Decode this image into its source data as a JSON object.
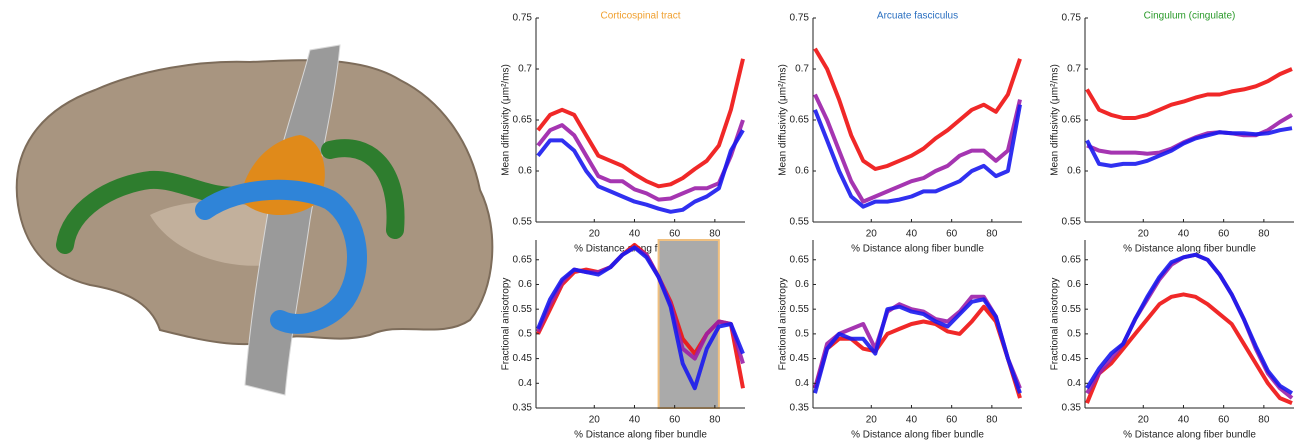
{
  "chart_data": [
    {
      "type": "line",
      "title": "Corticospinal tract",
      "title_color": "#f0a030",
      "xlabel": "% Distance along fiber bundle",
      "ylabel": "Mean diffusivity (μm²/ms)",
      "x": [
        -8,
        -2,
        4,
        10,
        16,
        22,
        28,
        34,
        40,
        46,
        52,
        58,
        64,
        70,
        76,
        82,
        88,
        94
      ],
      "xlim": [
        -9,
        95
      ],
      "xticks": [
        20,
        40,
        60,
        80
      ],
      "ylim": [
        0.55,
        0.75
      ],
      "yticks": [
        0.55,
        0.6,
        0.65,
        0.7,
        0.75
      ],
      "series": [
        {
          "color": "#ee1111",
          "values": [
            0.64,
            0.655,
            0.66,
            0.655,
            0.635,
            0.615,
            0.61,
            0.605,
            0.597,
            0.59,
            0.585,
            0.587,
            0.593,
            0.602,
            0.61,
            0.625,
            0.66,
            0.71
          ]
        },
        {
          "color": "#9b1fa8",
          "values": [
            0.625,
            0.64,
            0.645,
            0.635,
            0.615,
            0.595,
            0.59,
            0.59,
            0.582,
            0.578,
            0.572,
            0.573,
            0.578,
            0.583,
            0.583,
            0.588,
            0.615,
            0.65
          ]
        },
        {
          "color": "#1a1aee",
          "values": [
            0.615,
            0.63,
            0.63,
            0.62,
            0.6,
            0.585,
            0.58,
            0.575,
            0.57,
            0.567,
            0.563,
            0.56,
            0.562,
            0.57,
            0.575,
            0.583,
            0.62,
            0.64
          ]
        }
      ]
    },
    {
      "type": "line",
      "title": "Arcuate fasciculus",
      "title_color": "#2a6fc0",
      "xlabel": "% Distance along fiber bundle",
      "ylabel": "Mean diffusivity (μm²/ms)",
      "x": [
        -8,
        -2,
        4,
        10,
        16,
        22,
        28,
        34,
        40,
        46,
        52,
        58,
        64,
        70,
        76,
        82,
        88,
        94
      ],
      "xlim": [
        -9,
        95
      ],
      "xticks": [
        20,
        40,
        60,
        80
      ],
      "ylim": [
        0.55,
        0.75
      ],
      "yticks": [
        0.55,
        0.6,
        0.65,
        0.7,
        0.75
      ],
      "series": [
        {
          "color": "#ee1111",
          "values": [
            0.72,
            0.7,
            0.67,
            0.635,
            0.61,
            0.602,
            0.605,
            0.61,
            0.615,
            0.622,
            0.632,
            0.64,
            0.65,
            0.66,
            0.665,
            0.658,
            0.675,
            0.71
          ]
        },
        {
          "color": "#9b1fa8",
          "values": [
            0.675,
            0.65,
            0.62,
            0.59,
            0.57,
            0.575,
            0.58,
            0.585,
            0.59,
            0.593,
            0.6,
            0.605,
            0.615,
            0.62,
            0.62,
            0.61,
            0.62,
            0.67
          ]
        },
        {
          "color": "#1a1aee",
          "values": [
            0.66,
            0.63,
            0.6,
            0.575,
            0.565,
            0.57,
            0.57,
            0.572,
            0.575,
            0.58,
            0.58,
            0.585,
            0.59,
            0.6,
            0.605,
            0.595,
            0.6,
            0.665
          ]
        }
      ]
    },
    {
      "type": "line",
      "title": "Cingulum (cingulate)",
      "title_color": "#2a9a2a",
      "xlabel": "% Distance along fiber bundle",
      "ylabel": "Mean diffusivity (μm²/ms)",
      "x": [
        -8,
        -2,
        4,
        10,
        16,
        22,
        28,
        34,
        40,
        46,
        52,
        58,
        64,
        70,
        76,
        82,
        88,
        94
      ],
      "xlim": [
        -9,
        95
      ],
      "xticks": [
        20,
        40,
        60,
        80
      ],
      "ylim": [
        0.55,
        0.75
      ],
      "yticks": [
        0.55,
        0.6,
        0.65,
        0.7,
        0.75
      ],
      "series": [
        {
          "color": "#ee1111",
          "values": [
            0.68,
            0.66,
            0.655,
            0.652,
            0.652,
            0.655,
            0.66,
            0.665,
            0.668,
            0.672,
            0.675,
            0.675,
            0.678,
            0.68,
            0.683,
            0.688,
            0.695,
            0.7
          ]
        },
        {
          "color": "#9b1fa8",
          "values": [
            0.625,
            0.62,
            0.618,
            0.618,
            0.618,
            0.617,
            0.618,
            0.622,
            0.628,
            0.633,
            0.637,
            0.638,
            0.637,
            0.635,
            0.635,
            0.64,
            0.648,
            0.655
          ]
        },
        {
          "color": "#1a1aee",
          "values": [
            0.63,
            0.607,
            0.605,
            0.607,
            0.607,
            0.61,
            0.615,
            0.62,
            0.627,
            0.632,
            0.635,
            0.638,
            0.637,
            0.637,
            0.636,
            0.637,
            0.64,
            0.642
          ]
        }
      ]
    },
    {
      "type": "line",
      "xlabel": "% Distance along fiber bundle",
      "ylabel": "Fractional anisotropy",
      "x": [
        -8,
        -2,
        4,
        10,
        16,
        22,
        28,
        34,
        40,
        46,
        52,
        58,
        64,
        70,
        76,
        82,
        88,
        94
      ],
      "xlim": [
        -9,
        95
      ],
      "xticks": [
        20,
        40,
        60,
        80
      ],
      "ylim": [
        0.35,
        0.69
      ],
      "yticks": [
        0.35,
        0.4,
        0.45,
        0.5,
        0.55,
        0.6,
        0.65
      ],
      "highlight": {
        "xlim": [
          52,
          82
        ],
        "color": "#aaaaaa",
        "edgecolor": "#f0c080"
      },
      "series": [
        {
          "color": "#ee1111",
          "values": [
            0.5,
            0.55,
            0.6,
            0.625,
            0.63,
            0.625,
            0.635,
            0.66,
            0.68,
            0.66,
            0.615,
            0.565,
            0.49,
            0.46,
            0.5,
            0.525,
            0.52,
            0.39
          ]
        },
        {
          "color": "#9b1fa8",
          "values": [
            0.505,
            0.56,
            0.605,
            0.63,
            0.625,
            0.625,
            0.635,
            0.66,
            0.675,
            0.66,
            0.615,
            0.56,
            0.47,
            0.45,
            0.5,
            0.525,
            0.52,
            0.44
          ]
        },
        {
          "color": "#1a1aee",
          "values": [
            0.51,
            0.57,
            0.61,
            0.63,
            0.625,
            0.62,
            0.635,
            0.66,
            0.675,
            0.655,
            0.615,
            0.555,
            0.44,
            0.39,
            0.47,
            0.515,
            0.52,
            0.46
          ]
        }
      ]
    },
    {
      "type": "line",
      "xlabel": "% Distance along fiber bundle",
      "ylabel": "Fractional anisotropy",
      "x": [
        -8,
        -2,
        4,
        10,
        16,
        22,
        28,
        34,
        40,
        46,
        52,
        58,
        64,
        70,
        76,
        82,
        88,
        94
      ],
      "xlim": [
        -9,
        95
      ],
      "xticks": [
        20,
        40,
        60,
        80
      ],
      "ylim": [
        0.35,
        0.69
      ],
      "yticks": [
        0.35,
        0.4,
        0.45,
        0.5,
        0.55,
        0.6,
        0.65
      ],
      "series": [
        {
          "color": "#ee1111",
          "values": [
            0.39,
            0.47,
            0.49,
            0.49,
            0.47,
            0.465,
            0.5,
            0.51,
            0.52,
            0.525,
            0.52,
            0.505,
            0.5,
            0.525,
            0.555,
            0.525,
            0.45,
            0.37
          ]
        },
        {
          "color": "#9b1fa8",
          "values": [
            0.39,
            0.48,
            0.5,
            0.51,
            0.52,
            0.47,
            0.545,
            0.56,
            0.55,
            0.545,
            0.53,
            0.525,
            0.545,
            0.575,
            0.575,
            0.535,
            0.45,
            0.39
          ]
        },
        {
          "color": "#1a1aee",
          "values": [
            0.38,
            0.47,
            0.5,
            0.49,
            0.49,
            0.46,
            0.55,
            0.555,
            0.545,
            0.54,
            0.525,
            0.515,
            0.54,
            0.565,
            0.57,
            0.535,
            0.45,
            0.38
          ]
        }
      ]
    },
    {
      "type": "line",
      "xlabel": "% Distance along fiber bundle",
      "ylabel": "Fractional anisotropy",
      "x": [
        -8,
        -2,
        4,
        10,
        16,
        22,
        28,
        34,
        40,
        46,
        52,
        58,
        64,
        70,
        76,
        82,
        88,
        94
      ],
      "xlim": [
        -9,
        95
      ],
      "xticks": [
        20,
        40,
        60,
        80
      ],
      "ylim": [
        0.35,
        0.69
      ],
      "yticks": [
        0.35,
        0.4,
        0.45,
        0.5,
        0.55,
        0.6,
        0.65
      ],
      "series": [
        {
          "color": "#ee1111",
          "values": [
            0.36,
            0.42,
            0.44,
            0.47,
            0.5,
            0.53,
            0.56,
            0.575,
            0.58,
            0.575,
            0.56,
            0.54,
            0.52,
            0.48,
            0.44,
            0.4,
            0.37,
            0.36
          ]
        },
        {
          "color": "#9b1fa8",
          "values": [
            0.38,
            0.42,
            0.45,
            0.48,
            0.53,
            0.57,
            0.61,
            0.64,
            0.655,
            0.66,
            0.65,
            0.62,
            0.58,
            0.53,
            0.47,
            0.42,
            0.39,
            0.37
          ]
        },
        {
          "color": "#1a1aee",
          "values": [
            0.39,
            0.43,
            0.46,
            0.48,
            0.53,
            0.575,
            0.615,
            0.645,
            0.655,
            0.66,
            0.65,
            0.62,
            0.58,
            0.53,
            0.475,
            0.425,
            0.395,
            0.38
          ]
        }
      ]
    }
  ]
}
